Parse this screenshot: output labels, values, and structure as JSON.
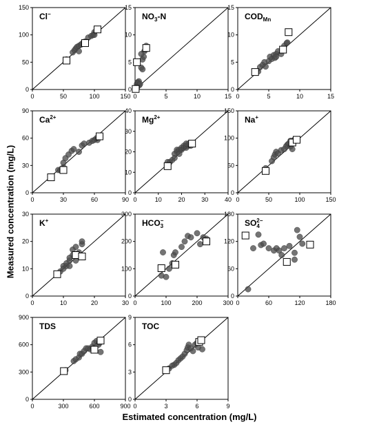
{
  "figure": {
    "ylabel": "Measured concentration (mg/L)",
    "xlabel": "Estimated concentration (mg/L)"
  },
  "chart_data": [
    {
      "type": "scatter",
      "title": "Cl",
      "title_sup": "−",
      "title_sub": "",
      "lim": [
        0,
        150
      ],
      "ticks": [
        0,
        50,
        100,
        150
      ],
      "series": [
        {
          "marker": "circle",
          "points": [
            [
              55,
              55
            ],
            [
              65,
              68
            ],
            [
              68,
              72
            ],
            [
              70,
              75
            ],
            [
              72,
              78
            ],
            [
              75,
              80
            ],
            [
              78,
              82
            ],
            [
              80,
              84
            ],
            [
              85,
              88
            ],
            [
              90,
              95
            ],
            [
              95,
              98
            ],
            [
              98,
              100
            ],
            [
              100,
              105
            ],
            [
              75,
              70
            ],
            [
              100,
              100
            ]
          ]
        },
        {
          "marker": "square",
          "points": [
            [
              55,
              53
            ],
            [
              85,
              85
            ],
            [
              105,
              110
            ]
          ]
        }
      ]
    },
    {
      "type": "scatter",
      "title": "NO",
      "title_sup": "",
      "title_sub": "3",
      "title_tail": "-N",
      "lim": [
        0,
        15
      ],
      "ticks": [
        0,
        5,
        10,
        15
      ],
      "series": [
        {
          "marker": "circle",
          "points": [
            [
              0.2,
              0.5
            ],
            [
              0.3,
              1.0
            ],
            [
              0.4,
              1.3
            ],
            [
              0.5,
              1.0
            ],
            [
              0.6,
              1.5
            ],
            [
              0.5,
              1.2
            ],
            [
              0.7,
              0.8
            ],
            [
              0.8,
              1.0
            ],
            [
              1.0,
              4.0
            ],
            [
              1.2,
              3.7
            ],
            [
              1.2,
              5.5
            ],
            [
              1.4,
              6.0
            ],
            [
              1.5,
              7.0
            ],
            [
              1.7,
              7.3
            ],
            [
              1.8,
              8.0
            ],
            [
              1.0,
              6.5
            ],
            [
              0.3,
              0.3
            ]
          ]
        },
        {
          "marker": "square",
          "points": [
            [
              0.1,
              0.1
            ],
            [
              0.3,
              5.0
            ],
            [
              1.8,
              7.6
            ]
          ]
        }
      ]
    },
    {
      "type": "scatter",
      "title": "COD",
      "title_sup": "",
      "title_sub": "Mn",
      "lim": [
        0,
        15
      ],
      "ticks": [
        0,
        5,
        10,
        15
      ],
      "series": [
        {
          "marker": "circle",
          "points": [
            [
              3.3,
              3.3
            ],
            [
              3.6,
              4.1
            ],
            [
              4.0,
              4.5
            ],
            [
              4.3,
              5.0
            ],
            [
              4.5,
              4.2
            ],
            [
              5.0,
              5.2
            ],
            [
              5.2,
              6.0
            ],
            [
              5.5,
              5.6
            ],
            [
              5.8,
              6.3
            ],
            [
              6.0,
              5.8
            ],
            [
              6.2,
              6.5
            ],
            [
              6.5,
              7.0
            ],
            [
              7.0,
              6.5
            ],
            [
              7.5,
              8.0
            ],
            [
              7.9,
              8.5
            ],
            [
              8.0,
              8.6
            ],
            [
              6.2,
              6.0
            ]
          ]
        },
        {
          "marker": "square",
          "points": [
            [
              2.8,
              3.2
            ],
            [
              7.3,
              7.3
            ],
            [
              8.2,
              10.5
            ]
          ]
        }
      ]
    },
    {
      "type": "scatter",
      "title": "Ca",
      "title_sup": "2+",
      "title_sub": "",
      "lim": [
        0,
        90
      ],
      "ticks": [
        0,
        30,
        60,
        90
      ],
      "series": [
        {
          "marker": "circle",
          "points": [
            [
              25,
              25
            ],
            [
              27,
              25
            ],
            [
              30,
              28
            ],
            [
              30,
              33
            ],
            [
              32,
              38
            ],
            [
              35,
              42
            ],
            [
              38,
              46
            ],
            [
              40,
              48
            ],
            [
              45,
              45
            ],
            [
              48,
              52
            ],
            [
              50,
              54
            ],
            [
              55,
              55
            ],
            [
              58,
              57
            ],
            [
              60,
              58
            ],
            [
              63,
              58
            ],
            [
              62,
              60
            ]
          ]
        },
        {
          "marker": "square",
          "points": [
            [
              18,
              17
            ],
            [
              30,
              25
            ],
            [
              65,
              62
            ]
          ]
        }
      ]
    },
    {
      "type": "scatter",
      "title": "Mg",
      "title_sup": "2+",
      "title_sub": "",
      "lim": [
        0,
        40
      ],
      "ticks": [
        0,
        10,
        20,
        30,
        40
      ],
      "series": [
        {
          "marker": "circle",
          "points": [
            [
              14,
              15
            ],
            [
              15,
              15
            ],
            [
              16,
              16
            ],
            [
              17,
              19
            ],
            [
              18,
              20
            ],
            [
              18,
              21
            ],
            [
              19,
              21
            ],
            [
              20,
              21
            ],
            [
              20,
              22
            ],
            [
              21,
              22
            ],
            [
              21,
              23
            ],
            [
              22,
              22
            ],
            [
              22,
              23
            ],
            [
              23,
              23
            ],
            [
              23,
              24
            ],
            [
              24,
              23
            ],
            [
              24,
              24
            ],
            [
              22,
              24
            ],
            [
              19,
              19
            ],
            [
              17,
              17
            ]
          ]
        },
        {
          "marker": "square",
          "points": [
            [
              14,
              13
            ],
            [
              24.5,
              24
            ]
          ]
        }
      ]
    },
    {
      "type": "scatter",
      "title": "Na",
      "title_sup": "+",
      "title_sub": "",
      "lim": [
        0,
        150
      ],
      "ticks": [
        0,
        50,
        100,
        150
      ],
      "series": [
        {
          "marker": "circle",
          "points": [
            [
              45,
              45
            ],
            [
              55,
              58
            ],
            [
              58,
              65
            ],
            [
              60,
              70
            ],
            [
              62,
              75
            ],
            [
              65,
              72
            ],
            [
              70,
              78
            ],
            [
              75,
              80
            ],
            [
              78,
              85
            ],
            [
              80,
              88
            ],
            [
              82,
              90
            ],
            [
              85,
              95
            ],
            [
              88,
              95
            ],
            [
              90,
              92
            ],
            [
              92,
              98
            ],
            [
              88,
              80
            ],
            [
              85,
              85
            ]
          ]
        },
        {
          "marker": "square",
          "points": [
            [
              45,
              40
            ],
            [
              88,
              92
            ],
            [
              95,
              97
            ]
          ]
        }
      ]
    },
    {
      "type": "scatter",
      "title": "K",
      "title_sup": "+",
      "title_sub": "",
      "lim": [
        0,
        30
      ],
      "ticks": [
        0,
        10,
        20,
        30
      ],
      "series": [
        {
          "marker": "circle",
          "points": [
            [
              8,
              8
            ],
            [
              9,
              9
            ],
            [
              10,
              11
            ],
            [
              10,
              10
            ],
            [
              11,
              11
            ],
            [
              11,
              12
            ],
            [
              12,
              13
            ],
            [
              12,
              14
            ],
            [
              13,
              15
            ],
            [
              13,
              17
            ],
            [
              14,
              18
            ],
            [
              14,
              13
            ],
            [
              15,
              16
            ],
            [
              16,
              19
            ],
            [
              16,
              20
            ],
            [
              12,
              11
            ]
          ]
        },
        {
          "marker": "square",
          "points": [
            [
              8,
              8
            ],
            [
              14,
              15
            ],
            [
              16,
              14.5
            ]
          ]
        }
      ]
    },
    {
      "type": "scatter",
      "title": "HCO",
      "title_sup": "−",
      "title_sub": "3",
      "lim": [
        0,
        300
      ],
      "ticks": [
        0,
        100,
        200,
        300
      ],
      "series": [
        {
          "marker": "circle",
          "points": [
            [
              85,
              75
            ],
            [
              90,
              160
            ],
            [
              100,
              70
            ],
            [
              110,
              100
            ],
            [
              120,
              120
            ],
            [
              125,
              150
            ],
            [
              130,
              160
            ],
            [
              150,
              180
            ],
            [
              160,
              200
            ],
            [
              170,
              220
            ],
            [
              180,
              215
            ],
            [
              200,
              230
            ],
            [
              210,
              190
            ],
            [
              220,
              215
            ],
            [
              230,
              210
            ]
          ]
        },
        {
          "marker": "square",
          "points": [
            [
              85,
              102
            ],
            [
              130,
              115
            ],
            [
              230,
              200
            ]
          ]
        }
      ]
    },
    {
      "type": "scatter",
      "title": "SO",
      "title_sup": "2−",
      "title_sub": "4",
      "lim": [
        0,
        180
      ],
      "ticks": [
        0,
        60,
        120,
        180
      ],
      "series": [
        {
          "marker": "circle",
          "points": [
            [
              20,
              15
            ],
            [
              30,
              105
            ],
            [
              40,
              135
            ],
            [
              45,
              112
            ],
            [
              50,
              115
            ],
            [
              60,
              105
            ],
            [
              70,
              100
            ],
            [
              75,
              105
            ],
            [
              80,
              100
            ],
            [
              85,
              90
            ],
            [
              90,
              105
            ],
            [
              100,
              110
            ],
            [
              110,
              80
            ],
            [
              110,
              95
            ],
            [
              115,
              145
            ],
            [
              125,
              115
            ],
            [
              120,
              130
            ]
          ]
        },
        {
          "marker": "square",
          "points": [
            [
              15,
              133
            ],
            [
              95,
              75
            ],
            [
              140,
              113
            ]
          ]
        }
      ]
    },
    {
      "type": "scatter",
      "title": "TDS",
      "title_sup": "",
      "title_sub": "",
      "lim": [
        0,
        900
      ],
      "ticks": [
        0,
        300,
        600,
        900
      ],
      "series": [
        {
          "marker": "circle",
          "points": [
            [
              320,
              320
            ],
            [
              400,
              420
            ],
            [
              420,
              440
            ],
            [
              450,
              460
            ],
            [
              460,
              500
            ],
            [
              480,
              500
            ],
            [
              500,
              530
            ],
            [
              520,
              560
            ],
            [
              540,
              560
            ],
            [
              560,
              550
            ],
            [
              580,
              580
            ],
            [
              600,
              620
            ],
            [
              620,
              640
            ],
            [
              640,
              600
            ],
            [
              660,
              520
            ],
            [
              650,
              620
            ]
          ]
        },
        {
          "marker": "square",
          "points": [
            [
              305,
              310
            ],
            [
              600,
              545
            ],
            [
              660,
              645
            ]
          ]
        }
      ]
    },
    {
      "type": "scatter",
      "title": "TOC",
      "title_sup": "",
      "title_sub": "",
      "lim": [
        0,
        9
      ],
      "ticks": [
        0,
        3,
        6,
        9
      ],
      "series": [
        {
          "marker": "circle",
          "points": [
            [
              3.3,
              3.4
            ],
            [
              3.6,
              3.7
            ],
            [
              3.8,
              3.8
            ],
            [
              4.0,
              4.0
            ],
            [
              4.2,
              4.3
            ],
            [
              4.4,
              4.5
            ],
            [
              4.6,
              4.7
            ],
            [
              4.8,
              5.0
            ],
            [
              5.0,
              5.4
            ],
            [
              5.1,
              5.7
            ],
            [
              5.2,
              6.0
            ],
            [
              5.4,
              5.6
            ],
            [
              5.6,
              5.3
            ],
            [
              6.0,
              6.2
            ],
            [
              6.3,
              6.3
            ],
            [
              6.5,
              5.5
            ],
            [
              6.1,
              5.7
            ],
            [
              5.8,
              6.0
            ]
          ]
        },
        {
          "marker": "square",
          "points": [
            [
              3.0,
              3.2
            ],
            [
              6.2,
              6.3
            ],
            [
              6.4,
              6.5
            ]
          ]
        }
      ]
    }
  ]
}
